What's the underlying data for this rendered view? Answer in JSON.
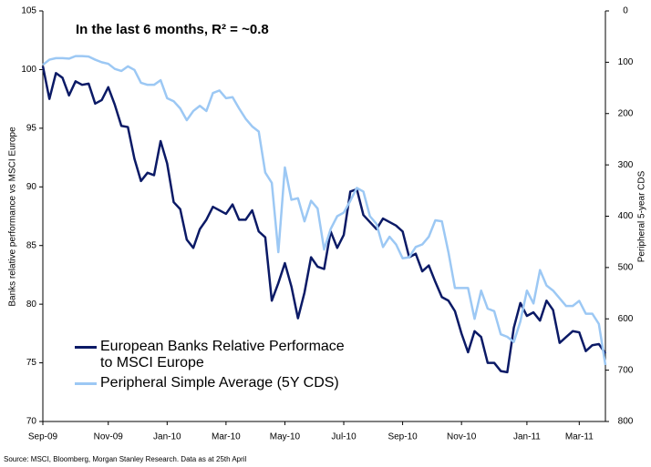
{
  "chart_data": {
    "type": "line",
    "title": "In the last 6 months, R² = ~0.8",
    "ylabel": "Banks relative performance vs MSCI Europe",
    "y2label": "Peripheral 5-year CDS",
    "source": "Source: MSCI, Bloomberg, Morgan Stanley Research. Data as at 25th April",
    "categories": [
      "Sep-09",
      null,
      null,
      null,
      null,
      null,
      null,
      null,
      null,
      null,
      "Nov-09",
      null,
      null,
      null,
      null,
      null,
      null,
      null,
      null,
      "Jan-10",
      null,
      null,
      null,
      null,
      null,
      null,
      null,
      null,
      "Mar-10",
      null,
      null,
      null,
      null,
      null,
      null,
      null,
      null,
      "May-10",
      null,
      null,
      null,
      null,
      null,
      null,
      null,
      null,
      "Jul-10",
      null,
      null,
      null,
      null,
      null,
      null,
      null,
      null,
      "Sep-10",
      null,
      null,
      null,
      null,
      null,
      null,
      null,
      null,
      "Nov-10",
      null,
      null,
      null,
      null,
      null,
      null,
      null,
      null,
      null,
      "Jan-11",
      null,
      null,
      null,
      null,
      null,
      null,
      null,
      "Mar-11",
      null,
      null,
      null,
      null
    ],
    "series": [
      {
        "name": "European Banks Relative Performace to MSCI Europe",
        "color": "#0b1a66",
        "axis": "y",
        "values": [
          100.3,
          97.5,
          99.7,
          99.3,
          97.8,
          99.0,
          98.7,
          98.8,
          97.1,
          97.4,
          98.5,
          97,
          95.2,
          95.1,
          92.4,
          90.5,
          91.2,
          91,
          93.9,
          92,
          88.7,
          88.1,
          85.5,
          84.8,
          86.4,
          87.2,
          88.3,
          88,
          87.7,
          88.5,
          87.2,
          87.2,
          88,
          86.2,
          85.7,
          80.3,
          81.8,
          83.5,
          81.5,
          78.8,
          81,
          84,
          83.2,
          83,
          86.2,
          84.8,
          85.9,
          89.6,
          89.8,
          87.6,
          87.0,
          86.4,
          87.3,
          87.0,
          86.7,
          86.2,
          84.0,
          84.3,
          82.8,
          83.3,
          81.9,
          80.6,
          80.3,
          79.4,
          77.5,
          75.9,
          77.7,
          77.2,
          75.0,
          75.0,
          74.3,
          74.2,
          78,
          80.1,
          79,
          79.3,
          78.6,
          80.3,
          79.5,
          76.7,
          77.2,
          77.7,
          77.6,
          76,
          76.5,
          76.6,
          75.8
        ]
      },
      {
        "name": "Peripheral Simple Average (5Y CDS)",
        "color": "#9cc8f4",
        "axis": "y2",
        "values": [
          105,
          95,
          92,
          92,
          93,
          88,
          88,
          89,
          95,
          100,
          103,
          113,
          117,
          108,
          115,
          140,
          144,
          144,
          135,
          170,
          176,
          190,
          213,
          195,
          185,
          195,
          160,
          155,
          170,
          168,
          190,
          210,
          225,
          235,
          315,
          335,
          470,
          305,
          368,
          365,
          410,
          370,
          385,
          465,
          425,
          400,
          393,
          370,
          345,
          352,
          400,
          415,
          460,
          440,
          455,
          482,
          480,
          460,
          455,
          440,
          408,
          410,
          470,
          540,
          540,
          540,
          600,
          545,
          580,
          585,
          630,
          635,
          645,
          605,
          545,
          570,
          505,
          535,
          545,
          560,
          575,
          575,
          565,
          590,
          590,
          610,
          690
        ]
      }
    ],
    "ylim": [
      70,
      105
    ],
    "yticks": [
      70,
      75,
      80,
      85,
      90,
      95,
      100,
      105
    ],
    "y2lim": [
      800,
      0
    ],
    "y2ticks": [
      0,
      100,
      200,
      300,
      400,
      500,
      600,
      700,
      800
    ],
    "grid": false
  }
}
